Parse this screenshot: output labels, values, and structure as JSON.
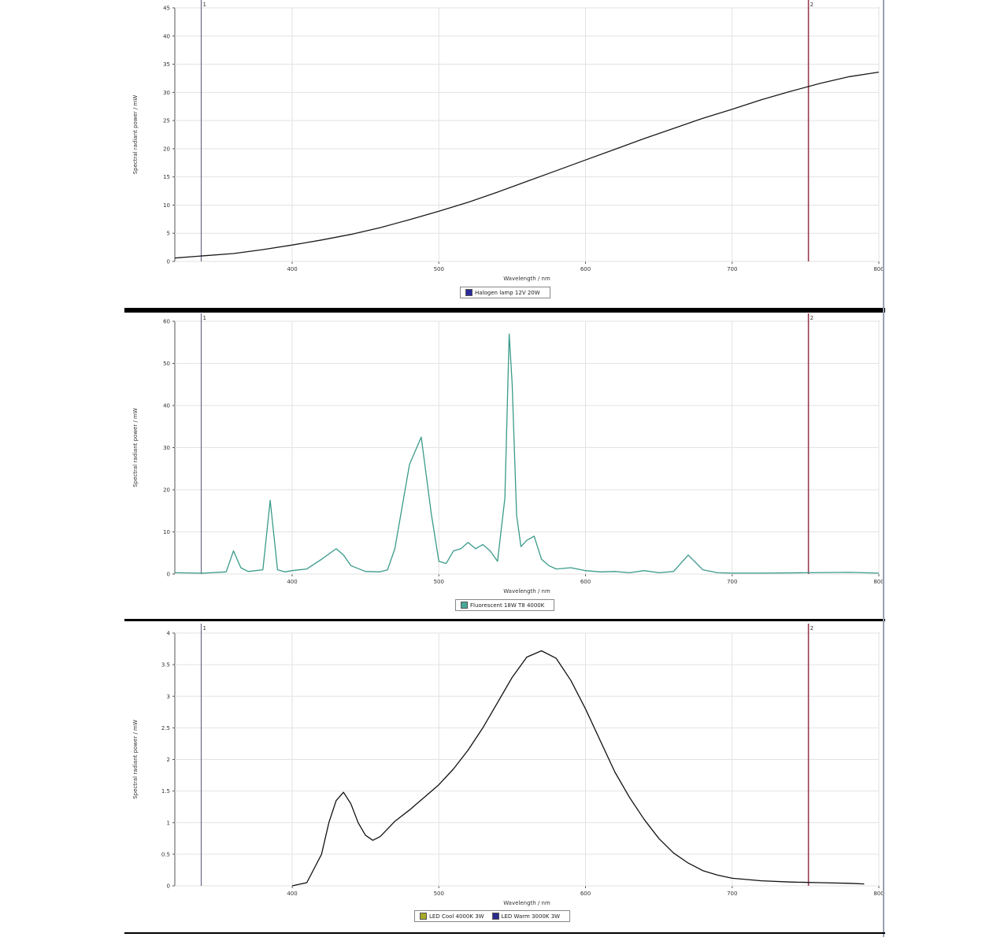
{
  "colors": {
    "marker_left": "#6a6a86",
    "marker_right": "#9a3a52",
    "grid": "#e2e2e2",
    "frame": "#555555"
  },
  "chart_data": [
    {
      "type": "line",
      "xlabel": "Wavelength / nm",
      "ylabel": "Spectral radiant power / mW",
      "xlim": [
        320,
        800
      ],
      "ylim": [
        0,
        45
      ],
      "xticks": [
        400,
        500,
        600,
        700,
        800
      ],
      "yticks": [
        0,
        5,
        10,
        15,
        20,
        25,
        30,
        35,
        40,
        45
      ],
      "markers": [
        {
          "x": 338,
          "label": "1"
        },
        {
          "x": 752,
          "label": "2"
        }
      ],
      "legend": [
        {
          "label": "Halogen lamp 12V 20W",
          "color": "#2a2a9a"
        }
      ],
      "series": [
        {
          "name": "Halogen lamp 12V 20W",
          "color": "#1a1a1a",
          "x": [
            320,
            340,
            360,
            380,
            400,
            420,
            440,
            460,
            480,
            500,
            520,
            540,
            560,
            580,
            600,
            620,
            640,
            660,
            680,
            700,
            720,
            740,
            760,
            780,
            800
          ],
          "y": [
            0.6,
            1.0,
            1.4,
            2.1,
            2.9,
            3.8,
            4.8,
            6.0,
            7.4,
            8.9,
            10.5,
            12.3,
            14.2,
            16.1,
            18.0,
            19.9,
            21.8,
            23.6,
            25.4,
            27.0,
            28.7,
            30.2,
            31.6,
            32.8,
            33.6
          ]
        }
      ]
    },
    {
      "type": "line",
      "xlabel": "Wavelength / nm",
      "ylabel": "Spectral radiant power / mW",
      "xlim": [
        320,
        800
      ],
      "ylim": [
        0,
        60
      ],
      "xticks": [
        400,
        500,
        600,
        700,
        800
      ],
      "yticks": [
        0,
        10,
        20,
        30,
        40,
        50,
        60
      ],
      "markers": [
        {
          "x": 338,
          "label": "1"
        },
        {
          "x": 752,
          "label": "2"
        }
      ],
      "legend": [
        {
          "label": "Fluorescent 18W T8 4000K",
          "color": "#4aa898"
        }
      ],
      "series": [
        {
          "name": "Fluorescent 18W T8 4000K",
          "color": "#3a9a8a",
          "x": [
            320,
            340,
            355,
            360,
            365,
            370,
            380,
            385,
            390,
            395,
            400,
            410,
            420,
            430,
            435,
            440,
            450,
            460,
            465,
            470,
            480,
            488,
            495,
            500,
            505,
            510,
            515,
            520,
            525,
            530,
            535,
            540,
            545,
            548,
            550,
            553,
            556,
            560,
            565,
            570,
            575,
            580,
            590,
            600,
            610,
            620,
            630,
            640,
            650,
            660,
            670,
            680,
            690,
            700,
            720,
            750,
            780,
            800
          ],
          "y": [
            0.3,
            0.2,
            0.5,
            5.5,
            1.5,
            0.6,
            1.0,
            17.5,
            1.0,
            0.5,
            0.8,
            1.2,
            3.5,
            6.0,
            4.5,
            2.0,
            0.6,
            0.5,
            1.0,
            6.0,
            26.0,
            32.5,
            14.0,
            3.0,
            2.5,
            5.5,
            6.0,
            7.5,
            6.0,
            7.0,
            5.5,
            3.0,
            18.0,
            57.0,
            45.0,
            14.0,
            6.5,
            8.0,
            9.0,
            3.5,
            2.0,
            1.2,
            1.5,
            0.8,
            0.5,
            0.6,
            0.3,
            0.8,
            0.3,
            0.6,
            4.5,
            1.0,
            0.3,
            0.2,
            0.2,
            0.3,
            0.4,
            0.2
          ]
        }
      ]
    },
    {
      "type": "line",
      "xlabel": "Wavelength / nm",
      "ylabel": "Spectral radiant power / mW",
      "xlim": [
        320,
        800
      ],
      "ylim": [
        0,
        4
      ],
      "xticks": [
        400,
        500,
        600,
        700,
        800
      ],
      "yticks": [
        0,
        0.5,
        1,
        1.5,
        2,
        2.5,
        3,
        3.5,
        4
      ],
      "markers": [
        {
          "x": 338,
          "label": "1"
        },
        {
          "x": 752,
          "label": "2"
        }
      ],
      "legend": [
        {
          "label": "LED Cool 4000K 3W",
          "color": "#a8a82a"
        },
        {
          "label": "LED Warm 3000K 3W",
          "color": "#2a2a8a"
        }
      ],
      "series": [
        {
          "name": "LED Warm 3000K 3W",
          "color": "#111111",
          "x": [
            400,
            410,
            420,
            425,
            430,
            435,
            440,
            445,
            450,
            455,
            460,
            465,
            470,
            480,
            490,
            500,
            510,
            520,
            530,
            540,
            550,
            560,
            570,
            580,
            590,
            600,
            610,
            620,
            630,
            640,
            650,
            660,
            670,
            680,
            690,
            700,
            720,
            740,
            760,
            780,
            790
          ],
          "y": [
            0.0,
            0.05,
            0.5,
            1.0,
            1.35,
            1.48,
            1.3,
            1.0,
            0.8,
            0.72,
            0.78,
            0.9,
            1.02,
            1.2,
            1.4,
            1.6,
            1.85,
            2.15,
            2.5,
            2.9,
            3.3,
            3.62,
            3.72,
            3.6,
            3.25,
            2.8,
            2.3,
            1.8,
            1.4,
            1.05,
            0.75,
            0.52,
            0.36,
            0.24,
            0.17,
            0.12,
            0.08,
            0.06,
            0.05,
            0.04,
            0.03
          ]
        }
      ]
    }
  ]
}
